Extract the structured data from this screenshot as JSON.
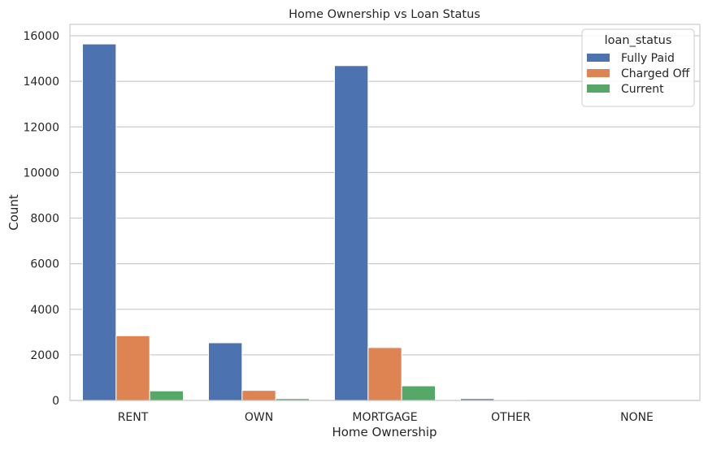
{
  "chart_data": {
    "type": "bar",
    "title": "Home Ownership vs Loan Status",
    "xlabel": "Home Ownership",
    "ylabel": "Count",
    "categories": [
      "RENT",
      "OWN",
      "MORTGAGE",
      "OTHER",
      "NONE"
    ],
    "series": [
      {
        "name": "Fully Paid",
        "color": "#4C72B0",
        "values": [
          15640,
          2530,
          14690,
          80,
          2
        ]
      },
      {
        "name": "Charged Off",
        "color": "#DD8452",
        "values": [
          2840,
          440,
          2320,
          18,
          1
        ]
      },
      {
        "name": "Current",
        "color": "#55A868",
        "values": [
          420,
          80,
          640,
          0,
          0
        ]
      }
    ],
    "ylim": [
      0,
      16500
    ],
    "yticks": [
      0,
      2000,
      4000,
      6000,
      8000,
      10000,
      12000,
      14000,
      16000
    ],
    "ytick_labels": [
      "0",
      "2000",
      "4000",
      "6000",
      "8000",
      "10000",
      "12000",
      "14000",
      "16000"
    ],
    "grid": "horizontal",
    "legend": {
      "title": "loan_status",
      "placement": "upper-right"
    }
  }
}
